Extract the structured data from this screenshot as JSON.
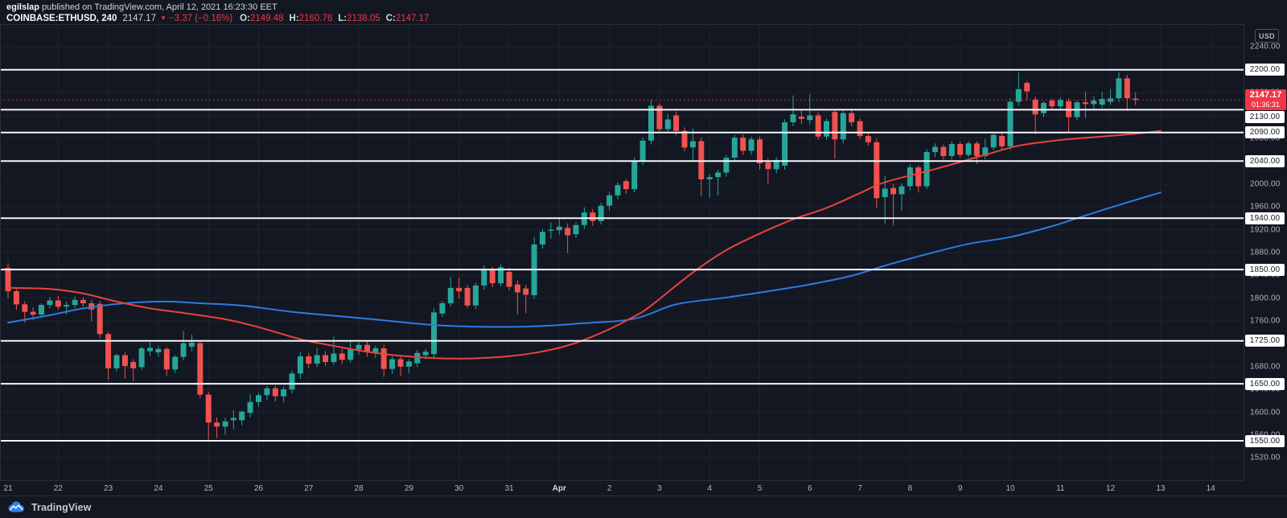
{
  "header": {
    "author": "egilslap",
    "published": " published on TradingView.com, April 12, 2021 16:23:30 EET",
    "symbol": "COINBASE:ETHUSD, 240",
    "last_price": "2147.17",
    "direction_icon": "▼",
    "change": "−3.37 (−0.16%)",
    "ohlc": [
      {
        "label": "O:",
        "value": "2149.48"
      },
      {
        "label": "H:",
        "value": "2160.76"
      },
      {
        "label": "L:",
        "value": "2138.05"
      },
      {
        "label": "C:",
        "value": "2147.17"
      }
    ]
  },
  "price_axis": {
    "currency": "USD",
    "tick_min": 1520,
    "tick_max": 2240,
    "tick_step": 40,
    "last_price_label": "2147.17",
    "countdown": "01:36:31"
  },
  "time_axis": {
    "labels": [
      "21",
      "22",
      "23",
      "24",
      "25",
      "26",
      "27",
      "28",
      "29",
      "30",
      "31",
      "Apr",
      "2",
      "3",
      "4",
      "5",
      "6",
      "7",
      "8",
      "9",
      "10",
      "11",
      "12",
      "13",
      "14"
    ],
    "month_label": "Apr"
  },
  "footer": {
    "brand": "TradingView"
  },
  "colors": {
    "background": "#131722",
    "grid": "#1e222d",
    "up": "#26a69a",
    "down": "#ef5350",
    "ma_fast": "#e8443d",
    "ma_slow": "#2d7be0",
    "level_line": "#f4f6f9",
    "current_price": "#f23645",
    "axis_text": "#b2b5be",
    "badge_bg": "#ffffff",
    "badge_text": "#131722",
    "price_badge_bg": "#f23645",
    "separator": "#2a2e39",
    "brand_blue": "#2f80ed"
  },
  "chart_data": {
    "type": "candlestick",
    "title": "COINBASE:ETHUSD 240",
    "interval_minutes": 240,
    "y_range": [
      1481,
      2280
    ],
    "grid_price_step": 40,
    "levels": [
      2200,
      2130,
      2090,
      2040,
      1940,
      1850,
      1725,
      1650,
      1550
    ],
    "current_price": 2147.17,
    "bars_per_day": 6,
    "candles": [
      [
        1853,
        1861,
        1800,
        1812
      ],
      [
        1812,
        1816,
        1779,
        1789
      ],
      [
        1789,
        1795,
        1757,
        1776
      ],
      [
        1776,
        1784,
        1762,
        1771
      ],
      [
        1771,
        1791,
        1767,
        1788
      ],
      [
        1788,
        1802,
        1782,
        1796
      ],
      [
        1796,
        1804,
        1779,
        1785
      ],
      [
        1785,
        1794,
        1771,
        1788
      ],
      [
        1788,
        1803,
        1782,
        1797
      ],
      [
        1797,
        1801,
        1785,
        1791
      ],
      [
        1791,
        1797,
        1759,
        1780
      ],
      [
        1790,
        1795,
        1730,
        1737
      ],
      [
        1737,
        1741,
        1657,
        1677
      ],
      [
        1677,
        1703,
        1671,
        1700
      ],
      [
        1700,
        1705,
        1659,
        1681
      ],
      [
        1688,
        1693,
        1655,
        1677
      ],
      [
        1679,
        1715,
        1674,
        1712
      ],
      [
        1707,
        1723,
        1699,
        1713
      ],
      [
        1705,
        1716,
        1697,
        1711
      ],
      [
        1711,
        1714,
        1664,
        1675
      ],
      [
        1675,
        1700,
        1669,
        1697
      ],
      [
        1697,
        1742,
        1691,
        1721
      ],
      [
        1715,
        1736,
        1707,
        1722
      ],
      [
        1721,
        1726,
        1624,
        1631
      ],
      [
        1631,
        1636,
        1552,
        1582
      ],
      [
        1582,
        1591,
        1555,
        1575
      ],
      [
        1575,
        1590,
        1561,
        1584
      ],
      [
        1586,
        1604,
        1570,
        1590
      ],
      [
        1586,
        1603,
        1577,
        1601
      ],
      [
        1599,
        1632,
        1591,
        1618
      ],
      [
        1618,
        1634,
        1609,
        1630
      ],
      [
        1630,
        1646,
        1621,
        1642
      ],
      [
        1642,
        1647,
        1619,
        1628
      ],
      [
        1628,
        1645,
        1617,
        1640
      ],
      [
        1640,
        1673,
        1633,
        1668
      ],
      [
        1668,
        1706,
        1659,
        1698
      ],
      [
        1698,
        1704,
        1677,
        1685
      ],
      [
        1685,
        1713,
        1679,
        1700
      ],
      [
        1700,
        1707,
        1681,
        1688
      ],
      [
        1688,
        1733,
        1683,
        1703
      ],
      [
        1703,
        1711,
        1684,
        1692
      ],
      [
        1692,
        1726,
        1687,
        1710
      ],
      [
        1710,
        1723,
        1701,
        1718
      ],
      [
        1718,
        1725,
        1697,
        1705
      ],
      [
        1705,
        1716,
        1695,
        1712
      ],
      [
        1712,
        1718,
        1662,
        1676
      ],
      [
        1676,
        1698,
        1667,
        1693
      ],
      [
        1693,
        1699,
        1664,
        1680
      ],
      [
        1680,
        1693,
        1669,
        1689
      ],
      [
        1686,
        1709,
        1679,
        1704
      ],
      [
        1700,
        1711,
        1693,
        1706
      ],
      [
        1702,
        1782,
        1695,
        1775
      ],
      [
        1773,
        1795,
        1767,
        1791
      ],
      [
        1791,
        1837,
        1785,
        1818
      ],
      [
        1818,
        1836,
        1799,
        1812
      ],
      [
        1818,
        1823,
        1782,
        1787
      ],
      [
        1787,
        1827,
        1781,
        1822
      ],
      [
        1822,
        1857,
        1815,
        1850
      ],
      [
        1850,
        1855,
        1819,
        1826
      ],
      [
        1826,
        1859,
        1821,
        1854
      ],
      [
        1846,
        1853,
        1813,
        1820
      ],
      [
        1824,
        1831,
        1772,
        1810
      ],
      [
        1817,
        1823,
        1774,
        1806
      ],
      [
        1805,
        1907,
        1799,
        1894
      ],
      [
        1894,
        1921,
        1887,
        1916
      ],
      [
        1918,
        1933,
        1904,
        1920
      ],
      [
        1919,
        1941,
        1911,
        1925
      ],
      [
        1923,
        1931,
        1879,
        1910
      ],
      [
        1912,
        1933,
        1905,
        1928
      ],
      [
        1928,
        1959,
        1921,
        1950
      ],
      [
        1950,
        1956,
        1927,
        1935
      ],
      [
        1935,
        1967,
        1929,
        1962
      ],
      [
        1962,
        1986,
        1954,
        1980
      ],
      [
        1980,
        2003,
        1973,
        1998
      ],
      [
        2005,
        2009,
        1983,
        1991
      ],
      [
        1991,
        2046,
        1985,
        2040
      ],
      [
        2040,
        2081,
        2033,
        2076
      ],
      [
        2076,
        2148,
        2069,
        2137
      ],
      [
        2137,
        2141,
        2089,
        2096
      ],
      [
        2096,
        2123,
        2090,
        2113
      ],
      [
        2120,
        2127,
        2085,
        2093
      ],
      [
        2093,
        2099,
        2057,
        2064
      ],
      [
        2064,
        2097,
        2039,
        2075
      ],
      [
        2075,
        2081,
        1979,
        2008
      ],
      [
        2008,
        2017,
        1976,
        2012
      ],
      [
        2012,
        2025,
        1980,
        2020
      ],
      [
        2020,
        2051,
        2013,
        2046
      ],
      [
        2046,
        2086,
        2039,
        2081
      ],
      [
        2081,
        2087,
        2051,
        2058
      ],
      [
        2058,
        2083,
        2051,
        2078
      ],
      [
        2078,
        2083,
        2025,
        2036
      ],
      [
        2038,
        2045,
        2001,
        2026
      ],
      [
        2026,
        2047,
        2019,
        2042
      ],
      [
        2032,
        2113,
        2025,
        2108
      ],
      [
        2108,
        2155,
        2101,
        2122
      ],
      [
        2118,
        2129,
        2105,
        2114
      ],
      [
        2112,
        2157,
        2105,
        2120
      ],
      [
        2120,
        2125,
        2077,
        2083
      ],
      [
        2083,
        2115,
        2077,
        2110
      ],
      [
        2126,
        2131,
        2044,
        2078
      ],
      [
        2078,
        2129,
        2071,
        2124
      ],
      [
        2124,
        2131,
        2101,
        2108
      ],
      [
        2110,
        2115,
        2079,
        2084
      ],
      [
        2084,
        2091,
        2067,
        2073
      ],
      [
        2073,
        2079,
        1958,
        1975
      ],
      [
        1977,
        2014,
        1930,
        1992
      ],
      [
        1993,
        2000,
        1928,
        1982
      ],
      [
        1982,
        2001,
        1953,
        1996
      ],
      [
        1996,
        2034,
        1989,
        2029
      ],
      [
        2029,
        2033,
        1985,
        1996
      ],
      [
        1996,
        2061,
        1991,
        2056
      ],
      [
        2056,
        2071,
        2047,
        2065
      ],
      [
        2065,
        2069,
        2043,
        2049
      ],
      [
        2049,
        2075,
        2043,
        2070
      ],
      [
        2070,
        2074,
        2046,
        2051
      ],
      [
        2051,
        2075,
        2047,
        2071
      ],
      [
        2071,
        2075,
        2035,
        2049
      ],
      [
        2049,
        2079,
        2043,
        2064
      ],
      [
        2064,
        2089,
        2059,
        2086
      ],
      [
        2084,
        2089,
        2061,
        2066
      ],
      [
        2066,
        2150,
        2059,
        2144
      ],
      [
        2144,
        2195,
        2137,
        2166
      ],
      [
        2177,
        2181,
        2147,
        2162
      ],
      [
        2148,
        2153,
        2087,
        2122
      ],
      [
        2124,
        2145,
        2117,
        2142
      ],
      [
        2146,
        2150,
        2130,
        2136
      ],
      [
        2136,
        2151,
        2128,
        2147
      ],
      [
        2145,
        2150,
        2090,
        2117
      ],
      [
        2117,
        2146,
        2112,
        2143
      ],
      [
        2143,
        2162,
        2115,
        2140
      ],
      [
        2140,
        2153,
        2132,
        2146
      ],
      [
        2139,
        2161,
        2133,
        2149
      ],
      [
        2144,
        2166,
        2139,
        2150
      ],
      [
        2150,
        2196,
        2143,
        2185
      ],
      [
        2185,
        2191,
        2128,
        2150
      ],
      [
        2149.48,
        2160.76,
        2138.05,
        2147.17
      ]
    ],
    "moving_averages": [
      {
        "name": "ma-red",
        "color": "#e8443d",
        "points": [
          [
            0,
            1818
          ],
          [
            5,
            1816
          ],
          [
            9,
            1808
          ],
          [
            13,
            1794
          ],
          [
            17,
            1782
          ],
          [
            21,
            1774
          ],
          [
            26,
            1763
          ],
          [
            30,
            1749
          ],
          [
            35,
            1728
          ],
          [
            38,
            1719
          ],
          [
            43,
            1706
          ],
          [
            47,
            1699
          ],
          [
            53,
            1694
          ],
          [
            59,
            1697
          ],
          [
            63,
            1704
          ],
          [
            67,
            1717
          ],
          [
            71,
            1739
          ],
          [
            75,
            1768
          ],
          [
            77,
            1787
          ],
          [
            82,
            1845
          ],
          [
            86,
            1884
          ],
          [
            90,
            1913
          ],
          [
            94,
            1938
          ],
          [
            98,
            1958
          ],
          [
            102,
            1984
          ],
          [
            105,
            2003
          ],
          [
            111,
            2026
          ],
          [
            117,
            2051
          ],
          [
            121,
            2067
          ],
          [
            126,
            2077
          ],
          [
            131,
            2083
          ],
          [
            135,
            2088
          ],
          [
            138,
            2093
          ]
        ]
      },
      {
        "name": "ma-blue",
        "color": "#2d7be0",
        "points": [
          [
            0,
            1757
          ],
          [
            5,
            1770
          ],
          [
            9,
            1782
          ],
          [
            14,
            1791
          ],
          [
            19,
            1794
          ],
          [
            23,
            1791
          ],
          [
            28,
            1787
          ],
          [
            34,
            1776
          ],
          [
            43,
            1764
          ],
          [
            52,
            1752
          ],
          [
            62,
            1750
          ],
          [
            69,
            1756
          ],
          [
            75,
            1764
          ],
          [
            80,
            1789
          ],
          [
            86,
            1801
          ],
          [
            91,
            1812
          ],
          [
            96,
            1824
          ],
          [
            101,
            1839
          ],
          [
            105,
            1857
          ],
          [
            110,
            1877
          ],
          [
            115,
            1895
          ],
          [
            120,
            1907
          ],
          [
            125,
            1926
          ],
          [
            128,
            1940
          ],
          [
            131,
            1954
          ],
          [
            135,
            1972
          ],
          [
            138,
            1985
          ]
        ]
      }
    ]
  }
}
